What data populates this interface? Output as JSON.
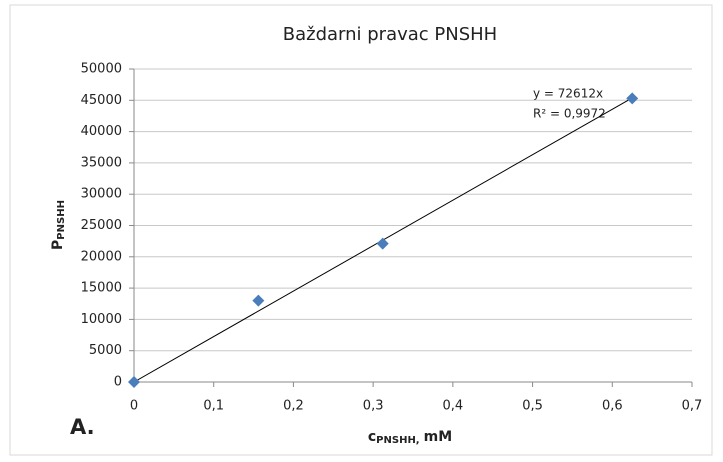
{
  "chart_data": {
    "type": "scatter",
    "title": "Baždarni pravac PNSHH",
    "xlabel": {
      "main": "c",
      "sub": "PNSHH,",
      "unit": "mM"
    },
    "ylabel": {
      "main": "P",
      "sub": "PNSHH"
    },
    "annotation": "A.",
    "series": [
      {
        "name": "PNSHH",
        "color": "#4a7ebb",
        "x": [
          0,
          0.156,
          0.312,
          0.625
        ],
        "values": [
          0,
          13000,
          22100,
          45300
        ]
      }
    ],
    "trendline": {
      "slope": 72612,
      "equation": "y = 72612x",
      "r2": "R² = 0,9972"
    },
    "xlim": [
      0,
      0.7
    ],
    "xticks": [
      0,
      {
        "value": 0.1,
        "label": "0,1"
      },
      {
        "value": 0.2,
        "label": "0,2"
      },
      {
        "value": 0.3,
        "label": "0,3"
      },
      {
        "value": 0.4,
        "label": "0,4"
      },
      {
        "value": 0.5,
        "label": "0,5"
      },
      {
        "value": 0.6,
        "label": "0,6"
      },
      {
        "value": 0.7,
        "label": "0,7"
      }
    ],
    "ylim": [
      0,
      50000
    ],
    "yticks": [
      0,
      5000,
      10000,
      15000,
      20000,
      25000,
      30000,
      35000,
      40000,
      45000,
      50000
    ],
    "grid": true
  }
}
